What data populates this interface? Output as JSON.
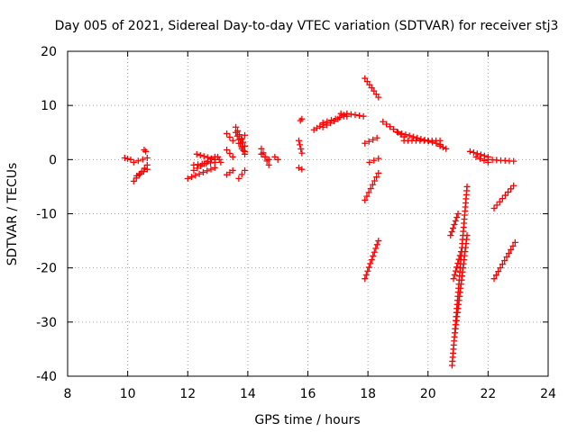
{
  "chart_data": {
    "type": "scatter",
    "title": "Day 005 of 2021, Sidereal Day-to-day VTEC variation (SDTVAR) for receiver stj3",
    "xlabel": "GPS time / hours",
    "ylabel": "SDTVAR / TECUs",
    "xlim": [
      8,
      24
    ],
    "ylim": [
      -40,
      20
    ],
    "xticks": [
      8,
      10,
      12,
      14,
      16,
      18,
      20,
      22,
      24
    ],
    "yticks": [
      -40,
      -30,
      -20,
      -10,
      0,
      10,
      20
    ],
    "grid": true,
    "marker": "+",
    "color": "#ff0000",
    "series": [
      {
        "name": "SDTVAR",
        "segments": [
          {
            "x0": 9.9,
            "x1": 10.1,
            "y0": 0.3,
            "y1": 0.0
          },
          {
            "x0": 10.2,
            "x1": 10.65,
            "y0": -0.5,
            "y1": 0.3
          },
          {
            "x0": 10.2,
            "x1": 10.65,
            "y0": -4.0,
            "y1": -1.0
          },
          {
            "x0": 10.3,
            "x1": 10.65,
            "y0": -3.0,
            "y1": -1.8
          },
          {
            "x0": 10.55,
            "x1": 10.6,
            "y0": 1.8,
            "y1": 1.5
          },
          {
            "x0": 12.0,
            "x1": 12.9,
            "y0": -3.5,
            "y1": -1.5
          },
          {
            "x0": 12.2,
            "x1": 12.9,
            "y0": -2.0,
            "y1": 0.5
          },
          {
            "x0": 12.3,
            "x1": 12.9,
            "y0": 1.0,
            "y1": 0.0
          },
          {
            "x0": 12.2,
            "x1": 12.9,
            "y0": -1.0,
            "y1": -0.5
          },
          {
            "x0": 13.0,
            "x1": 13.1,
            "y0": 0.5,
            "y1": -0.5
          },
          {
            "x0": 13.3,
            "x1": 13.5,
            "y0": 4.8,
            "y1": 3.5
          },
          {
            "x0": 13.3,
            "x1": 13.5,
            "y0": 1.8,
            "y1": 0.5
          },
          {
            "x0": 13.3,
            "x1": 13.5,
            "y0": -2.8,
            "y1": -2.0
          },
          {
            "x0": 13.6,
            "x1": 13.9,
            "y0": 6.0,
            "y1": 2.5
          },
          {
            "x0": 13.6,
            "x1": 13.9,
            "y0": 5.0,
            "y1": 1.0
          },
          {
            "x0": 13.7,
            "x1": 13.9,
            "y0": 3.0,
            "y1": 4.5
          },
          {
            "x0": 13.8,
            "x1": 13.9,
            "y0": 2.0,
            "y1": 1.5
          },
          {
            "x0": 13.7,
            "x1": 13.9,
            "y0": -3.5,
            "y1": -2.0
          },
          {
            "x0": 14.45,
            "x1": 14.7,
            "y0": 2.0,
            "y1": -1.0
          },
          {
            "x0": 14.45,
            "x1": 14.7,
            "y0": 1.0,
            "y1": 0.0
          },
          {
            "x0": 14.9,
            "x1": 15.0,
            "y0": 0.5,
            "y1": 0.0
          },
          {
            "x0": 15.7,
            "x1": 15.8,
            "y0": 3.5,
            "y1": 1.2
          },
          {
            "x0": 15.75,
            "x1": 15.8,
            "y0": 7.2,
            "y1": 7.5
          },
          {
            "x0": 15.7,
            "x1": 15.8,
            "y0": -1.5,
            "y1": -1.8
          },
          {
            "x0": 16.2,
            "x1": 16.5,
            "y0": 5.5,
            "y1": 6.5
          },
          {
            "x0": 16.5,
            "x1": 17.0,
            "y0": 6.0,
            "y1": 7.5
          },
          {
            "x0": 16.5,
            "x1": 17.2,
            "y0": 6.8,
            "y1": 8.0
          },
          {
            "x0": 17.1,
            "x1": 17.3,
            "y0": 8.5,
            "y1": 8.0
          },
          {
            "x0": 17.3,
            "x1": 17.85,
            "y0": 8.5,
            "y1": 8.0
          },
          {
            "x0": 17.9,
            "x1": 18.35,
            "y0": 15.0,
            "y1": 11.5
          },
          {
            "x0": 17.9,
            "x1": 18.3,
            "y0": 3.0,
            "y1": 4.0
          },
          {
            "x0": 18.05,
            "x1": 18.35,
            "y0": -0.5,
            "y1": 0.2
          },
          {
            "x0": 17.9,
            "x1": 18.35,
            "y0": -7.5,
            "y1": -2.5
          },
          {
            "x0": 17.9,
            "x1": 18.35,
            "y0": -22.0,
            "y1": -15.0
          },
          {
            "x0": 18.5,
            "x1": 19.2,
            "y0": 7.0,
            "y1": 4.2
          },
          {
            "x0": 19.0,
            "x1": 20.4,
            "y0": 5.0,
            "y1": 2.8
          },
          {
            "x0": 19.2,
            "x1": 20.4,
            "y0": 3.5,
            "y1": 3.5
          },
          {
            "x0": 20.4,
            "x1": 20.6,
            "y0": 2.5,
            "y1": 2.0
          },
          {
            "x0": 20.8,
            "x1": 21.3,
            "y0": -38.0,
            "y1": -5.0
          },
          {
            "x0": 20.9,
            "x1": 21.3,
            "y0": -32.0,
            "y1": -14.0
          },
          {
            "x0": 20.75,
            "x1": 21.0,
            "y0": -14.0,
            "y1": -10.0
          },
          {
            "x0": 20.85,
            "x1": 21.1,
            "y0": -22.0,
            "y1": -17.0
          },
          {
            "x0": 21.4,
            "x1": 22.0,
            "y0": 1.5,
            "y1": 0.5
          },
          {
            "x0": 21.6,
            "x1": 22.0,
            "y0": 0.5,
            "y1": -0.5
          },
          {
            "x0": 22.0,
            "x1": 22.85,
            "y0": 0.0,
            "y1": -0.3
          },
          {
            "x0": 22.2,
            "x1": 22.85,
            "y0": -9.0,
            "y1": -4.8
          },
          {
            "x0": 22.2,
            "x1": 22.9,
            "y0": -22.0,
            "y1": -15.3
          }
        ]
      }
    ]
  }
}
